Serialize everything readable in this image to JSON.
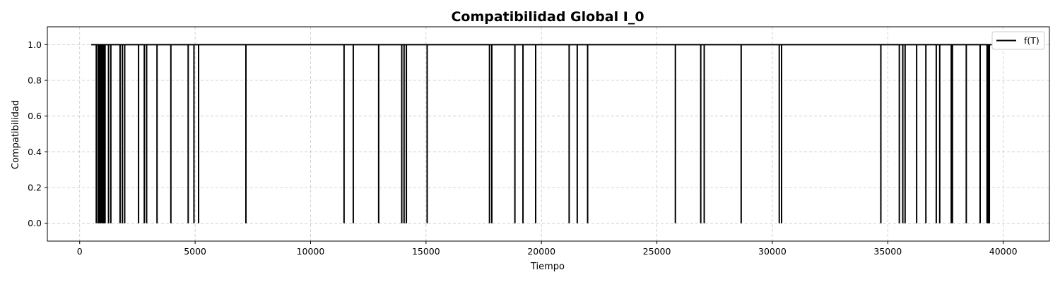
{
  "chart_data": {
    "type": "line",
    "title": "Compatibilidad Global I_0",
    "xlabel": "Tiempo",
    "ylabel": "Compatibilidad",
    "xlim": [
      -1400,
      42000
    ],
    "ylim": [
      -0.1,
      1.1
    ],
    "xticks": [
      0,
      5000,
      10000,
      15000,
      20000,
      25000,
      30000,
      35000,
      40000
    ],
    "yticks": [
      0.0,
      0.2,
      0.4,
      0.6,
      0.8,
      1.0
    ],
    "xtick_labels": [
      "0",
      "5000",
      "10000",
      "15000",
      "20000",
      "25000",
      "30000",
      "35000",
      "40000"
    ],
    "ytick_labels": [
      "0.0",
      "0.2",
      "0.4",
      "0.6",
      "0.8",
      "1.0"
    ],
    "grid": true,
    "legend_position": "top-right",
    "series": [
      {
        "name": "f(T)",
        "color": "#000000",
        "baseline": 1.0,
        "x_start": 500,
        "x_end": 39500,
        "drops_to": 0.0,
        "drop_times": [
          720,
          800,
          850,
          900,
          950,
          1000,
          1050,
          1100,
          1250,
          1350,
          1750,
          1850,
          1950,
          2550,
          2800,
          2900,
          3350,
          3950,
          4700,
          4950,
          5150,
          7200,
          11450,
          11850,
          12950,
          13950,
          14050,
          14150,
          15050,
          17750,
          17850,
          18850,
          19200,
          19750,
          21200,
          21550,
          22000,
          25800,
          26900,
          27050,
          28650,
          30300,
          30400,
          34700,
          35500,
          35650,
          35750,
          36250,
          36650,
          37100,
          37250,
          37750,
          37800,
          38400,
          39000,
          39300,
          39350,
          39400
        ]
      }
    ]
  }
}
